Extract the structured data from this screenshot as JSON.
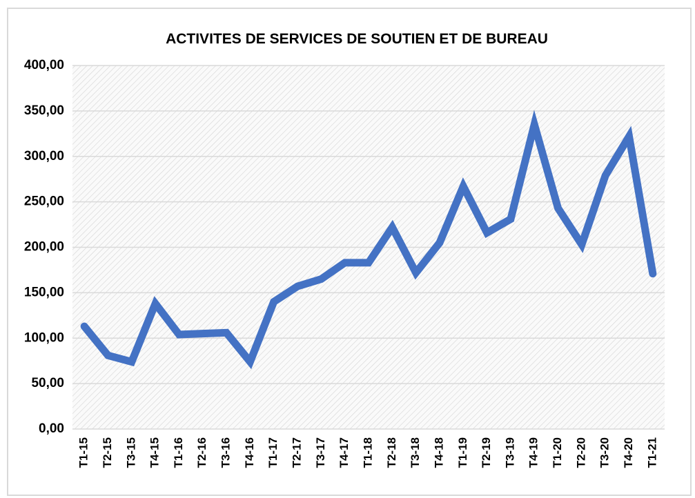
{
  "chart_data": {
    "type": "line",
    "title": "ACTIVITES DE SERVICES DE SOUTIEN ET DE BUREAU",
    "categories": [
      "T1-15",
      "T2-15",
      "T3-15",
      "T4-15",
      "T1-16",
      "T2-16",
      "T3-16",
      "T4-16",
      "T1-17",
      "T2-17",
      "T3-17",
      "T4-17",
      "T1-18",
      "T2-18",
      "T3-18",
      "T4-18",
      "T1-19",
      "T2-19",
      "T3-19",
      "T4-19",
      "T1-20",
      "T2-20",
      "T3-20",
      "T4-20",
      "T1-21"
    ],
    "series": [
      {
        "color": "#4472c4",
        "values": [
          113,
          81,
          74,
          138,
          104,
          105,
          106,
          74,
          140,
          157,
          165,
          183,
          183,
          222,
          172,
          205,
          267,
          216,
          231,
          335,
          243,
          203,
          279,
          322,
          171
        ]
      }
    ],
    "ylim": [
      0,
      400
    ],
    "yticks": [
      {
        "value": 0,
        "label": "0,00"
      },
      {
        "value": 50,
        "label": "50,00"
      },
      {
        "value": 100,
        "label": "100,00"
      },
      {
        "value": 150,
        "label": "150,00"
      },
      {
        "value": 200,
        "label": "200,00"
      },
      {
        "value": 250,
        "label": "250,00"
      },
      {
        "value": 300,
        "label": "300,00"
      },
      {
        "value": 350,
        "label": "350,00"
      },
      {
        "value": 400,
        "label": "400,00"
      }
    ],
    "grid": true
  }
}
